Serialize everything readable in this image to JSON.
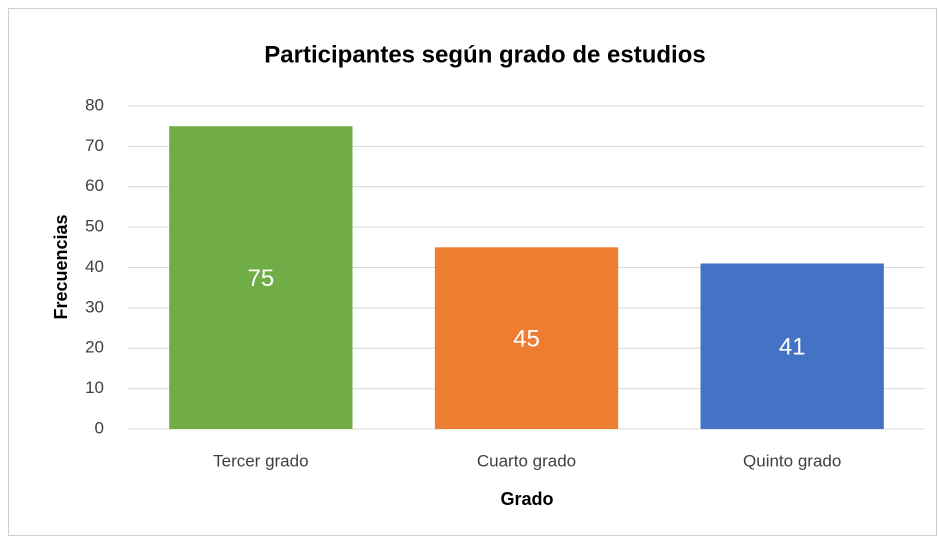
{
  "chart_data": {
    "type": "bar",
    "title": "Participantes según grado de estudios",
    "x_label": "Grado",
    "y_label": "Frecuencias",
    "categories": [
      "Tercer grado",
      "Cuarto grado",
      "Quinto grado"
    ],
    "values": [
      75,
      45,
      41
    ],
    "colors": [
      "#70ad47",
      "#ed7d31",
      "#4472c4"
    ],
    "ylim": [
      0,
      80
    ],
    "yticks": [
      0,
      10,
      20,
      30,
      40,
      50,
      60,
      70,
      80
    ],
    "grid": true,
    "data_labels": true
  }
}
